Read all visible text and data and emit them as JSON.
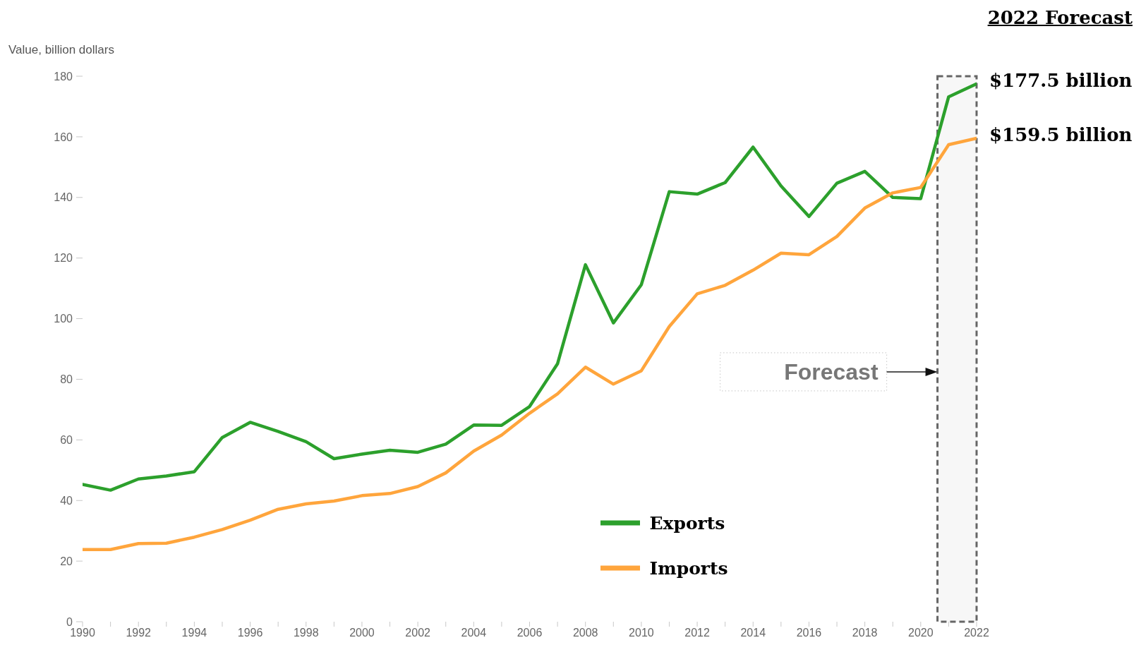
{
  "chart_data": {
    "type": "line",
    "title": "2022 Forecast",
    "ylabel": "Value, billion dollars",
    "x": [
      1990,
      1991,
      1992,
      1993,
      1994,
      1995,
      1996,
      1997,
      1998,
      1999,
      2000,
      2001,
      2002,
      2003,
      2004,
      2005,
      2006,
      2007,
      2008,
      2009,
      2010,
      2011,
      2012,
      2013,
      2014,
      2015,
      2016,
      2017,
      2018,
      2019,
      2020,
      2021,
      2022
    ],
    "series": [
      {
        "name": "Exports",
        "color": "#2ca02c",
        "values": [
          45.3,
          43.4,
          47.1,
          48.1,
          49.5,
          60.8,
          65.8,
          62.8,
          59.4,
          53.8,
          55.3,
          56.6,
          55.9,
          58.6,
          64.9,
          64.8,
          71.0,
          85.1,
          117.8,
          98.6,
          111.2,
          141.9,
          141.1,
          144.9,
          156.6,
          143.8,
          133.7,
          144.7,
          148.6,
          140.0,
          139.6,
          173.2,
          177.5
        ]
      },
      {
        "name": "Imports",
        "color": "#ffa53c",
        "values": [
          23.8,
          23.8,
          25.8,
          25.9,
          27.9,
          30.4,
          33.5,
          37.1,
          38.9,
          39.8,
          41.6,
          42.3,
          44.6,
          49.1,
          56.3,
          61.6,
          68.8,
          75.2,
          84.0,
          78.4,
          82.8,
          97.4,
          108.2,
          111.0,
          116.0,
          121.6,
          121.1,
          127.1,
          136.5,
          141.5,
          143.3,
          157.4,
          159.5
        ]
      }
    ],
    "xlim": [
      1990,
      2022
    ],
    "xticks": [
      1990,
      {
        "value": 1991,
        "label": null
      },
      1992,
      {
        "value": 1993,
        "label": null
      },
      1994,
      {
        "value": 1995,
        "label": null
      },
      1996,
      {
        "value": 1997,
        "label": null
      },
      1998,
      {
        "value": 1999,
        "label": null
      },
      2000,
      {
        "value": 2001,
        "label": null
      },
      2002,
      {
        "value": 2003,
        "label": null
      },
      2004,
      {
        "value": 2005,
        "label": null
      },
      2006,
      {
        "value": 2007,
        "label": null
      },
      2008,
      {
        "value": 2009,
        "label": null
      },
      2010,
      {
        "value": 2011,
        "label": null
      },
      2012,
      {
        "value": 2013,
        "label": null
      },
      2014,
      {
        "value": 2015,
        "label": null
      },
      2016,
      {
        "value": 2017,
        "label": null
      },
      2018,
      {
        "value": 2019,
        "label": null
      },
      2020,
      {
        "value": 2021,
        "label": null
      },
      2022
    ],
    "ylim": [
      0,
      180
    ],
    "yticks": [
      0,
      20,
      40,
      60,
      80,
      100,
      120,
      140,
      160,
      180
    ],
    "legend": "bottom",
    "line_style": "solid",
    "bands": [
      {
        "axis": "x",
        "from": 2020.6,
        "to": 2022,
        "label": "Forecast",
        "color": "#666666"
      }
    ],
    "annotations": [
      {
        "text": "$177.5 billion",
        "x": 2022,
        "y": 177.5
      },
      {
        "text": "$159.5 billion",
        "x": 2022,
        "y": 159.5
      }
    ]
  }
}
